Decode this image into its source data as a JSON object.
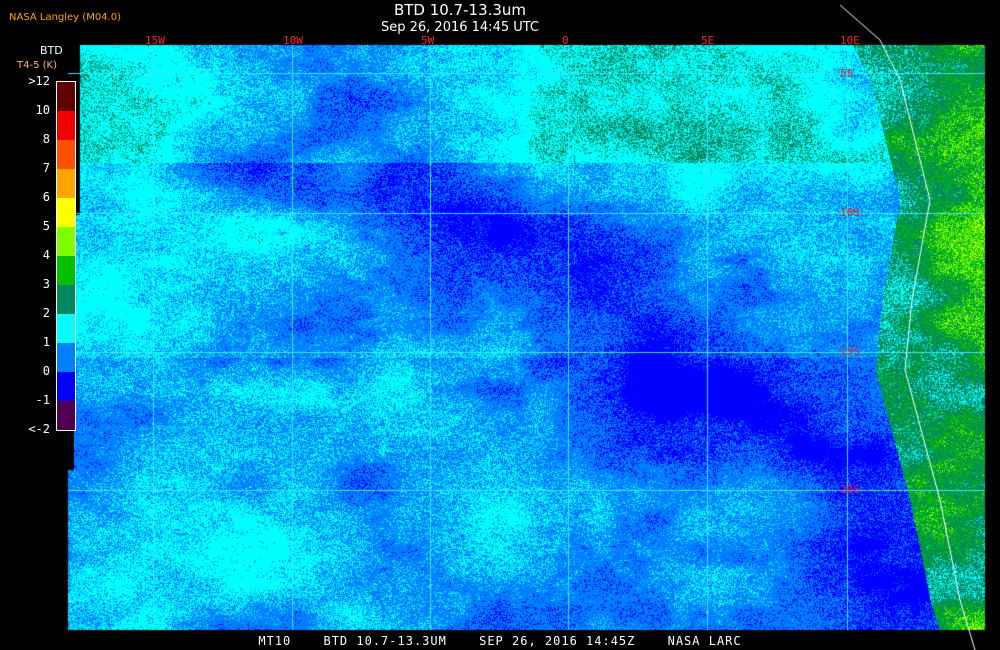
{
  "header": {
    "title": "BTD 10.7-13.3um",
    "subtitle": "Sep 26, 2016 14:45 UTC",
    "credit": "NASA Langley (M04.0)"
  },
  "colorbar": {
    "title": "BTD",
    "units": "T4-5 (K)",
    "labels": [
      ">12",
      "10",
      "8",
      "7",
      "6",
      "5",
      "4",
      "3",
      "2",
      "1",
      "0",
      "-1",
      "<-2"
    ],
    "colors": [
      "#600000",
      "#f00000",
      "#ff5000",
      "#ffa500",
      "#ffff00",
      "#80ff00",
      "#00c000",
      "#008860",
      "#00ffff",
      "#0080ff",
      "#0000ff",
      "#500050"
    ]
  },
  "grid": {
    "longitudes": [
      "15W",
      "10W",
      "5W",
      "0",
      "5E",
      "10E"
    ],
    "latitudes": [
      "5S",
      "10S",
      "15S",
      "20S"
    ],
    "line_color": "#40e0ff",
    "label_color": "#ff2020"
  },
  "footer": {
    "channel": "MT10",
    "product": "BTD 10.7-13.3UM",
    "datetime": "SEP 26, 2016 14:45Z",
    "source": "NASA LARC"
  }
}
